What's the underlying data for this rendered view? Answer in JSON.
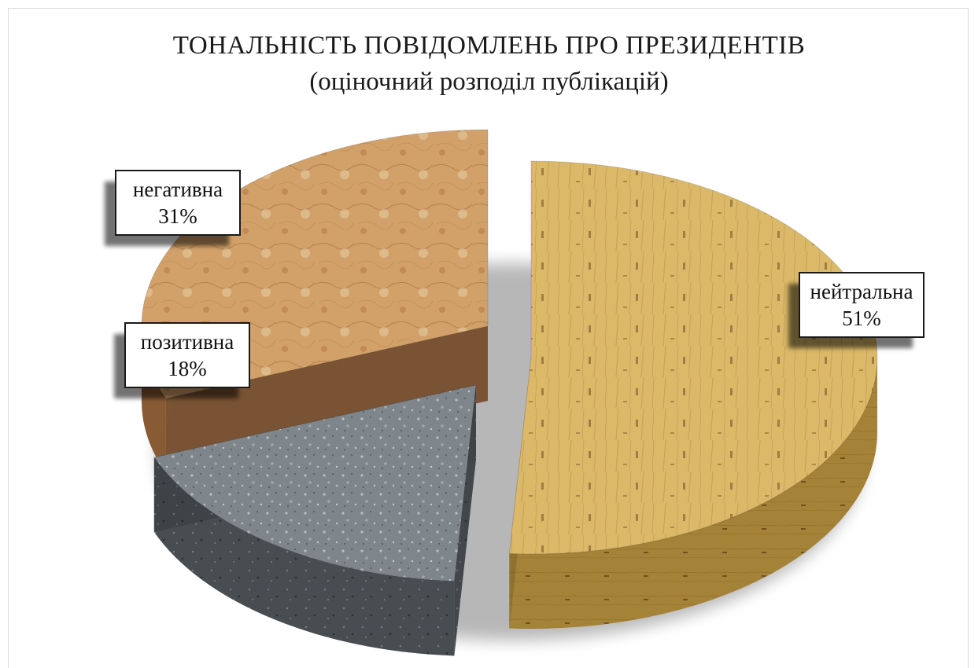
{
  "chart_data": {
    "type": "pie",
    "title": "ТОНАЛЬНІСТЬ ПОВІДОМЛЕНЬ ПРО ПРЕЗИДЕНТІВ",
    "subtitle": "(оціночний розподіл публікацій)",
    "slices": [
      {
        "label": "нейтральна",
        "value": 51,
        "value_label": "51%",
        "color": "#d6b055"
      },
      {
        "label": "позитивна",
        "value": 18,
        "value_label": "18%",
        "color": "#6f767c"
      },
      {
        "label": "негативна",
        "value": 31,
        "value_label": "31%",
        "color": "#c9925a"
      }
    ],
    "style": "3d-exploded",
    "legend": "none"
  }
}
